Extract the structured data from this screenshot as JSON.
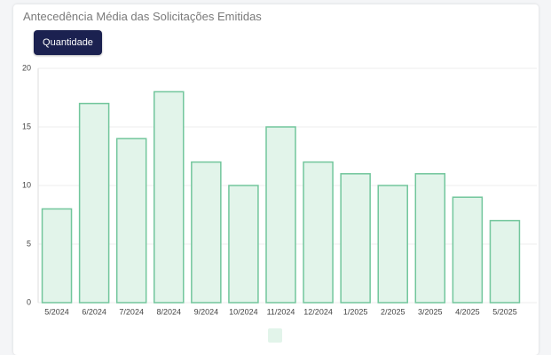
{
  "toolbar_button": "Quantidade",
  "chart_data": {
    "type": "bar",
    "title": "Antecedência Média das Solicitações Emitidas",
    "categories": [
      "5/2024",
      "6/2024",
      "7/2024",
      "8/2024",
      "9/2024",
      "10/2024",
      "11/2024",
      "12/2024",
      "1/2025",
      "2/2025",
      "3/2025",
      "4/2025",
      "5/2025"
    ],
    "values": [
      8,
      17,
      14,
      18,
      12,
      10,
      15,
      12,
      11,
      10,
      11,
      9,
      7
    ],
    "color": "#72c69c",
    "fill": "#e2f4ea",
    "ylim": [
      0,
      20
    ],
    "yticks": [
      0,
      5,
      10,
      15,
      20
    ],
    "grid": true
  }
}
